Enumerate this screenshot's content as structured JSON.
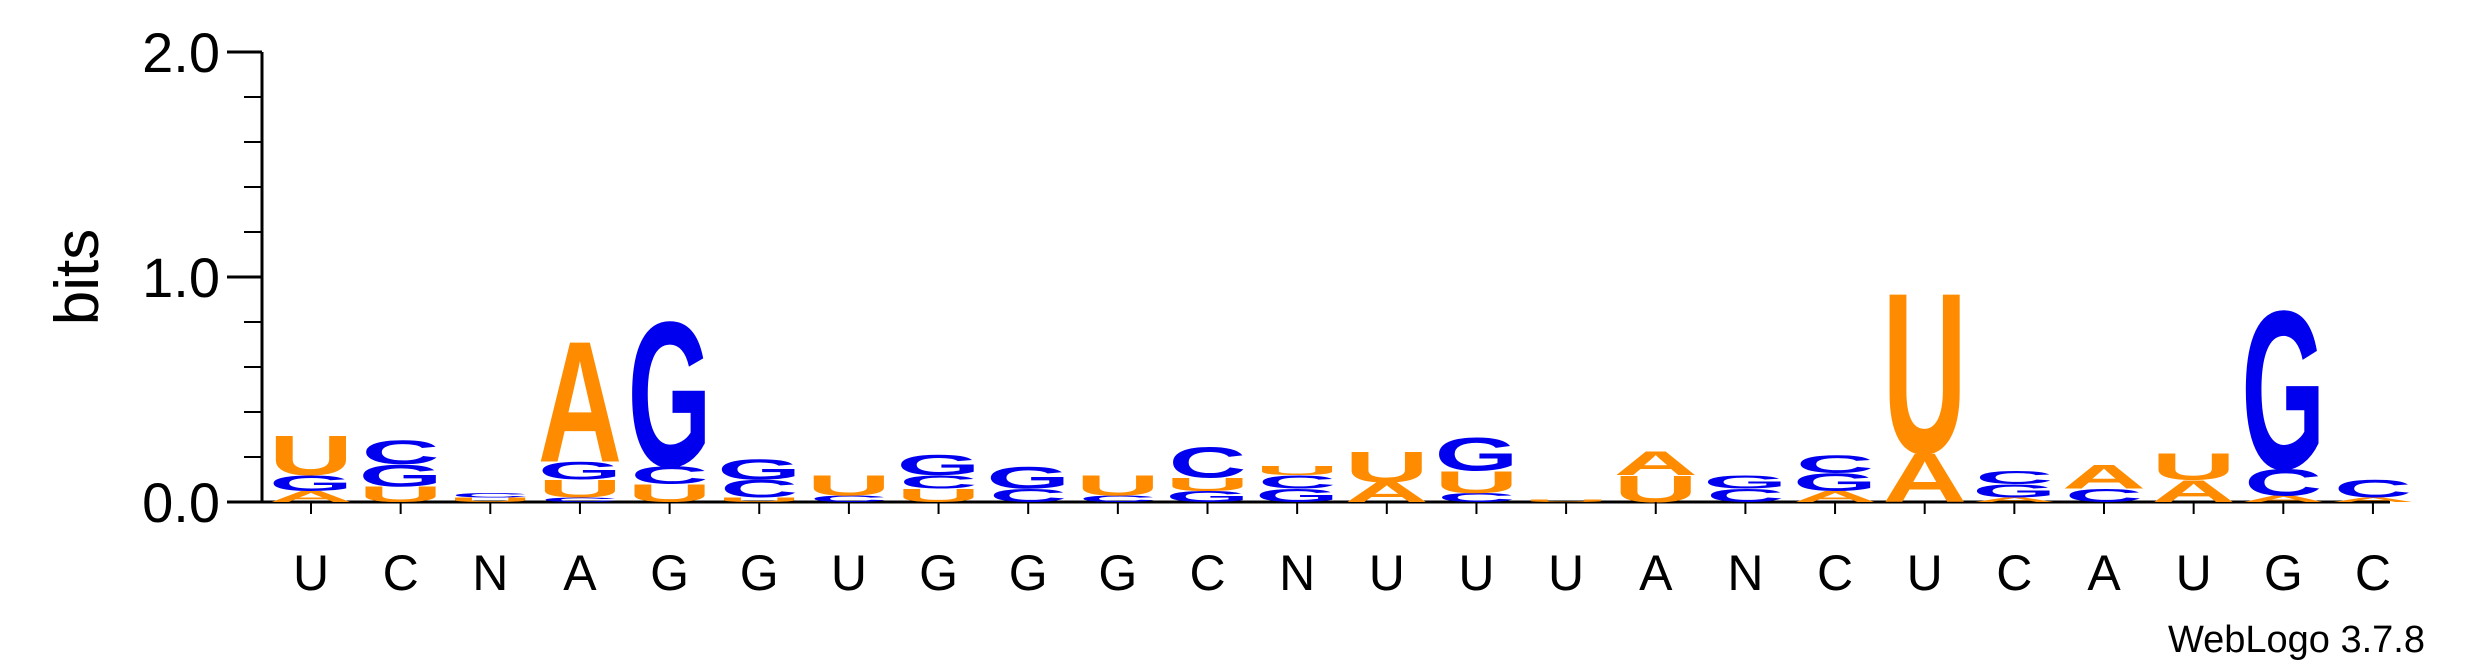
{
  "chart_data": {
    "type": "sequence-logo",
    "ylabel": "bits",
    "ylim": [
      0,
      2.0
    ],
    "yticks": [
      "0.0",
      "1.0",
      "2.0"
    ],
    "credit": "WebLogo 3.7.8",
    "colors": {
      "A": "#ff8c00",
      "U": "#ff8c00",
      "C": "#0000ee",
      "G": "#0000ee"
    },
    "x_labels": [
      "U",
      "C",
      "N",
      "A",
      "G",
      "G",
      "U",
      "G",
      "G",
      "G",
      "C",
      "N",
      "U",
      "U",
      "U",
      "A",
      "N",
      "C",
      "U",
      "C",
      "A",
      "U",
      "G",
      "C"
    ],
    "columns": [
      {
        "stack": [
          {
            "l": "A",
            "h": 0.05
          },
          {
            "l": "G",
            "h": 0.07
          },
          {
            "l": "U",
            "h": 0.18
          }
        ]
      },
      {
        "stack": [
          {
            "l": "U",
            "h": 0.07
          },
          {
            "l": "G",
            "h": 0.1
          },
          {
            "l": "C",
            "h": 0.11
          }
        ]
      },
      {
        "stack": [
          {
            "l": "U",
            "h": 0.02
          },
          {
            "l": "C",
            "h": 0.02
          }
        ]
      },
      {
        "stack": [
          {
            "l": "C",
            "h": 0.02
          },
          {
            "l": "U",
            "h": 0.08
          },
          {
            "l": "G",
            "h": 0.08
          },
          {
            "l": "A",
            "h": 0.55
          }
        ]
      },
      {
        "stack": [
          {
            "l": "U",
            "h": 0.08
          },
          {
            "l": "C",
            "h": 0.08
          },
          {
            "l": "G",
            "h": 0.66
          }
        ]
      },
      {
        "stack": [
          {
            "l": "U",
            "h": 0.02
          },
          {
            "l": "C",
            "h": 0.08
          },
          {
            "l": "G",
            "h": 0.09
          }
        ]
      },
      {
        "stack": [
          {
            "l": "C",
            "h": 0.03
          },
          {
            "l": "U",
            "h": 0.09
          }
        ]
      },
      {
        "stack": [
          {
            "l": "U",
            "h": 0.06
          },
          {
            "l": "C",
            "h": 0.06
          },
          {
            "l": "G",
            "h": 0.09
          }
        ]
      },
      {
        "stack": [
          {
            "l": "C",
            "h": 0.06
          },
          {
            "l": "G",
            "h": 0.1
          }
        ]
      },
      {
        "stack": [
          {
            "l": "C",
            "h": 0.03
          },
          {
            "l": "U",
            "h": 0.09
          }
        ]
      },
      {
        "stack": [
          {
            "l": "G",
            "h": 0.05
          },
          {
            "l": "U",
            "h": 0.06
          },
          {
            "l": "C",
            "h": 0.14
          }
        ]
      },
      {
        "stack": [
          {
            "l": "G",
            "h": 0.06
          },
          {
            "l": "C",
            "h": 0.06
          },
          {
            "l": "U",
            "h": 0.04
          }
        ]
      },
      {
        "stack": [
          {
            "l": "A",
            "h": 0.09
          },
          {
            "l": "U",
            "h": 0.14
          }
        ]
      },
      {
        "stack": [
          {
            "l": "C",
            "h": 0.04
          },
          {
            "l": "U",
            "h": 0.1
          },
          {
            "l": "G",
            "h": 0.15
          }
        ]
      },
      {
        "stack": [
          {
            "l": "U",
            "h": 0.01
          }
        ]
      },
      {
        "stack": [
          {
            "l": "U",
            "h": 0.12
          },
          {
            "l": "A",
            "h": 0.11
          }
        ]
      },
      {
        "stack": [
          {
            "l": "C",
            "h": 0.06
          },
          {
            "l": "G",
            "h": 0.06
          }
        ]
      },
      {
        "stack": [
          {
            "l": "A",
            "h": 0.05
          },
          {
            "l": "G",
            "h": 0.08
          },
          {
            "l": "C",
            "h": 0.08
          }
        ]
      },
      {
        "stack": [
          {
            "l": "A",
            "h": 0.22
          },
          {
            "l": "U",
            "h": 0.73
          }
        ]
      },
      {
        "stack": [
          {
            "l": "A",
            "h": 0.02
          },
          {
            "l": "G",
            "h": 0.06
          },
          {
            "l": "C",
            "h": 0.06
          }
        ]
      },
      {
        "stack": [
          {
            "l": "C",
            "h": 0.06
          },
          {
            "l": "A",
            "h": 0.11
          }
        ]
      },
      {
        "stack": [
          {
            "l": "A",
            "h": 0.1
          },
          {
            "l": "U",
            "h": 0.12
          }
        ]
      },
      {
        "stack": [
          {
            "l": "A",
            "h": 0.03
          },
          {
            "l": "C",
            "h": 0.12
          },
          {
            "l": "G",
            "h": 0.72
          }
        ]
      },
      {
        "stack": [
          {
            "l": "A",
            "h": 0.02
          },
          {
            "l": "C",
            "h": 0.08
          }
        ]
      }
    ]
  }
}
